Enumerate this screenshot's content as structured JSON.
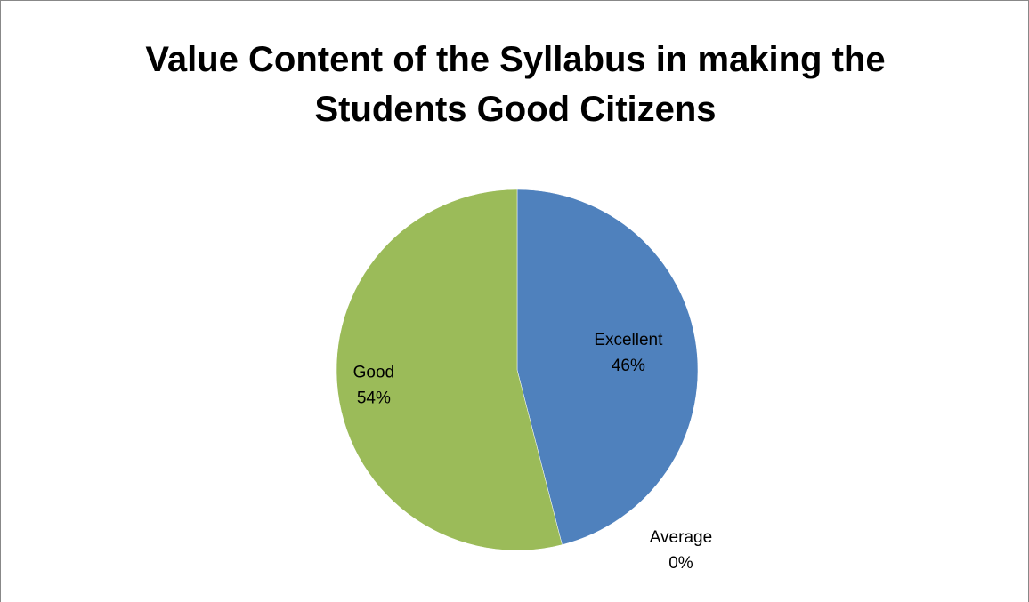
{
  "chart_data": {
    "type": "pie",
    "title_lines": [
      "Value Content of the Syllabus in making the",
      "Students Good Citizens"
    ],
    "slices": [
      {
        "name": "Excellent",
        "value": 46,
        "label": "46%",
        "color": "#4F81BD"
      },
      {
        "name": "Average",
        "value": 0,
        "label": "0%",
        "color": "#C0504D"
      },
      {
        "name": "Good",
        "value": 54,
        "label": "54%",
        "color": "#9BBB59"
      }
    ],
    "start_angle_deg": 0,
    "direction": "clockwise",
    "legend": "none",
    "data_labels": "category name and percentage"
  }
}
